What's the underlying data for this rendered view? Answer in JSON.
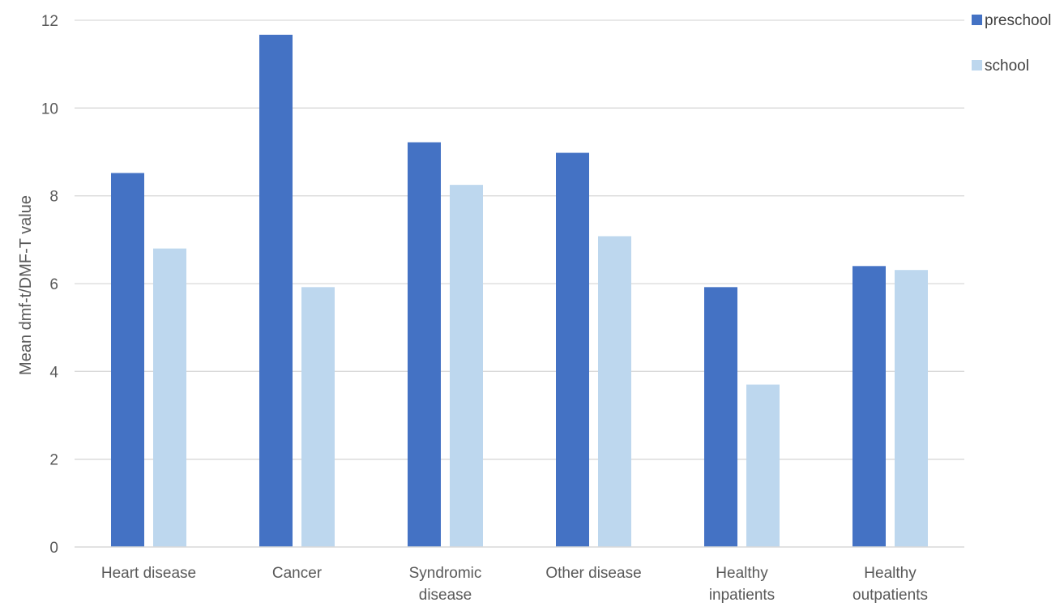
{
  "chart_data": {
    "type": "bar",
    "title": "",
    "xlabel": "",
    "ylabel": "Mean dmf-t/DMF-T value",
    "ylim": [
      0,
      12
    ],
    "yticks": [
      0,
      2,
      4,
      6,
      8,
      10,
      12
    ],
    "grid": true,
    "legend_position": "top-right",
    "categories": [
      [
        "Heart  disease"
      ],
      [
        "Cancer"
      ],
      [
        "Syndromic",
        "disease"
      ],
      [
        "Other disease"
      ],
      [
        "Healthy",
        "inpatients"
      ],
      [
        "Healthy",
        "outpatients"
      ]
    ],
    "series": [
      {
        "name": "preschool",
        "color": "#4472C4",
        "values": [
          8.52,
          11.67,
          9.22,
          8.98,
          5.92,
          6.4
        ]
      },
      {
        "name": "school",
        "color": "#BDD7EE",
        "values": [
          6.8,
          5.92,
          8.25,
          7.08,
          3.7,
          6.31
        ]
      }
    ],
    "gridline_color": "#D9D9D9"
  }
}
